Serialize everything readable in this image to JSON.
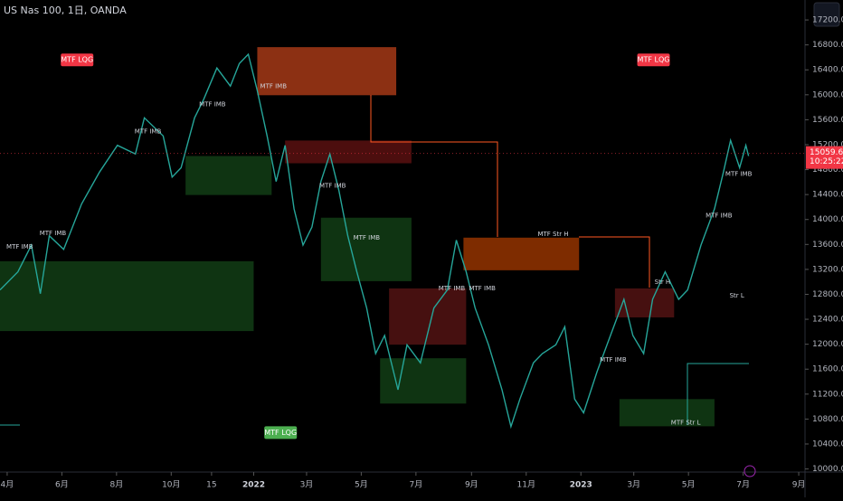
{
  "chart_data": {
    "type": "line",
    "title": "US Nas 100, 1日, OANDA",
    "color": "#26a69a",
    "x": [
      -8,
      12,
      27,
      37,
      47,
      63,
      83,
      103,
      123,
      143,
      153,
      174,
      184,
      194,
      209,
      219,
      234,
      249,
      259,
      269,
      279,
      290,
      300,
      310,
      320,
      330,
      340,
      350,
      360,
      370,
      380,
      390,
      401,
      411,
      421,
      436,
      446,
      461,
      476,
      491,
      501,
      512,
      522,
      537,
      552,
      562,
      572,
      587,
      597,
      612,
      622,
      633,
      643,
      658,
      673,
      688,
      698,
      710,
      720,
      734,
      749,
      759,
      774,
      789,
      799,
      807,
      817,
      824,
      827
    ],
    "values": [
      12870,
      13160,
      13590,
      12810,
      13740,
      13520,
      14250,
      14760,
      15190,
      15050,
      15630,
      15340,
      14680,
      14830,
      15630,
      15920,
      16430,
      16140,
      16500,
      16650,
      16070,
      15340,
      14610,
      15190,
      14170,
      13590,
      13880,
      14610,
      15050,
      14470,
      13740,
      13160,
      12580,
      11850,
      12140,
      11270,
      11990,
      11700,
      12580,
      12870,
      13670,
      13160,
      12580,
      11990,
      11270,
      10680,
      11120,
      11700,
      11850,
      11990,
      12280,
      11120,
      10900,
      11560,
      12140,
      12720,
      12140,
      11850,
      12720,
      13160,
      12720,
      12870,
      13590,
      14170,
      14760,
      15270,
      14830,
      15190,
      15018
    ],
    "xlim": [
      -8,
      890
    ],
    "xticks": [
      {
        "value": 0,
        "label": "4月"
      },
      {
        "value": 61,
        "label": "6月"
      },
      {
        "value": 122,
        "label": "8月"
      },
      {
        "value": 183,
        "label": "10月"
      },
      {
        "value": 228,
        "label": "15"
      },
      {
        "value": 275,
        "label": "2022"
      },
      {
        "value": 334,
        "label": "3月"
      },
      {
        "value": 395,
        "label": "5月"
      },
      {
        "value": 456,
        "label": "7月"
      },
      {
        "value": 518,
        "label": "9月"
      },
      {
        "value": 579,
        "label": "11月"
      },
      {
        "value": 640,
        "label": "2023"
      },
      {
        "value": 699,
        "label": "3月"
      },
      {
        "value": 760,
        "label": "5月"
      },
      {
        "value": 821,
        "label": "7月"
      },
      {
        "value": 883,
        "label": "9月"
      }
    ],
    "ylim": [
      9950,
      17520
    ],
    "yticks": [
      {
        "value": 10000,
        "label": "10000.0"
      },
      {
        "value": 10400,
        "label": "10400.0"
      },
      {
        "value": 10800,
        "label": "10800.0"
      },
      {
        "value": 11200,
        "label": "11200.0"
      },
      {
        "value": 11600,
        "label": "11600.0"
      },
      {
        "value": 12000,
        "label": "12000.0"
      },
      {
        "value": 12400,
        "label": "12400.0"
      },
      {
        "value": 12800,
        "label": "12800.0"
      },
      {
        "value": 13200,
        "label": "13200.0"
      },
      {
        "value": 13600,
        "label": "13600.0"
      },
      {
        "value": 14000,
        "label": "14000.0"
      },
      {
        "value": 14400,
        "label": "14400.0"
      },
      {
        "value": 14800,
        "label": "14800.0"
      },
      {
        "value": 15200,
        "label": "15200.0"
      },
      {
        "value": 15600,
        "label": "15600.0"
      },
      {
        "value": 16000,
        "label": "16000.0"
      },
      {
        "value": 16400,
        "label": "16400.0"
      },
      {
        "value": 16800,
        "label": "16800.0"
      },
      {
        "value": 17200,
        "label": "17200.0"
      }
    ],
    "last_price": 15059.6,
    "countdown": "10:25:22",
    "zones": [
      {
        "x": [
          279,
          434
        ],
        "y": [
          15993,
          16764
        ],
        "color": "#ff5722"
      },
      {
        "x": [
          310,
          451
        ],
        "y": [
          14902,
          15266
        ],
        "color": "#8b1a1a"
      },
      {
        "x": [
          509,
          638
        ],
        "y": [
          13186,
          13709
        ],
        "color": "#e65100"
      },
      {
        "x": [
          426,
          512
        ],
        "y": [
          11993,
          12895
        ],
        "color": "#7f1d1d"
      },
      {
        "x": [
          678,
          744
        ],
        "y": [
          12430,
          12895
        ],
        "color": "#7f1d1d"
      },
      {
        "x": [
          -8,
          275
        ],
        "y": [
          12211,
          13331
        ],
        "color": "#1b5e20"
      },
      {
        "x": [
          199,
          295
        ],
        "y": [
          14393,
          15018
        ],
        "color": "#1b5e20"
      },
      {
        "x": [
          350,
          451
        ],
        "y": [
          13011,
          14029
        ],
        "color": "#1b5e20"
      },
      {
        "x": [
          416,
          512
        ],
        "y": [
          11048,
          11775
        ],
        "color": "#1b5e20"
      },
      {
        "x": [
          683,
          789
        ],
        "y": [
          10684,
          11120
        ],
        "color": "#1b5e20"
      }
    ],
    "badges": [
      {
        "text": "MTF LQG",
        "x": 78,
        "y": 16560,
        "color": "#f23645"
      },
      {
        "text": "MTF LQG",
        "x": 721,
        "y": 16560,
        "color": "#f23645"
      },
      {
        "text": "MTF LQG",
        "x": 305,
        "y": 10582,
        "color": "#4caf50"
      }
    ],
    "annotations": [
      {
        "text": "MTF Str H",
        "x": 609,
        "y": 13767
      },
      {
        "text": "MTF Str L",
        "x": 757,
        "y": 10742
      },
      {
        "text": "Str L",
        "x": 814,
        "y": 12778
      },
      {
        "text": "Str H",
        "x": 731,
        "y": 12997
      },
      {
        "text": "MTF IMB",
        "x": 14,
        "y": 13564
      },
      {
        "text": "MTF IMB",
        "x": 51,
        "y": 13782
      },
      {
        "text": "MTF IMB",
        "x": 157,
        "y": 15411
      },
      {
        "text": "MTF IMB",
        "x": 229,
        "y": 15847
      },
      {
        "text": "MTF IMB",
        "x": 297,
        "y": 16138
      },
      {
        "text": "MTF IMB",
        "x": 363,
        "y": 14538
      },
      {
        "text": "MTF IMB",
        "x": 401,
        "y": 13709
      },
      {
        "text": "MTF IMB",
        "x": 496,
        "y": 12895
      },
      {
        "text": "MTF IMB",
        "x": 530,
        "y": 12895
      },
      {
        "text": "MTF IMB",
        "x": 676,
        "y": 11745
      },
      {
        "text": "MTF IMB",
        "x": 794,
        "y": 14058
      },
      {
        "text": "MTF IMB",
        "x": 816,
        "y": 14727
      }
    ]
  }
}
